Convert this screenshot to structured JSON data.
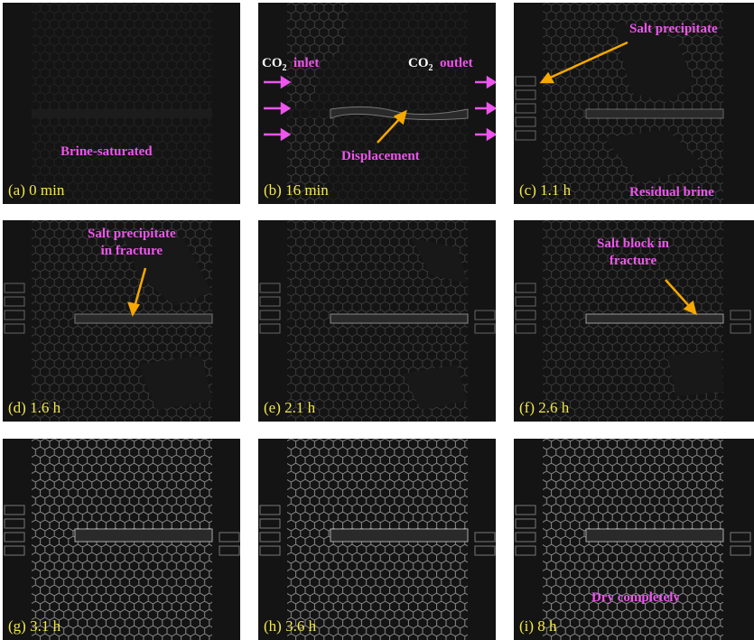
{
  "panels": [
    {
      "id": "a",
      "time": "(a) 0 min",
      "annotations": [
        "Brine-saturated"
      ]
    },
    {
      "id": "b",
      "time": "(b) 16 min",
      "annotations": [
        "inlet",
        "outlet",
        "Displacement"
      ],
      "gas": "CO",
      "gas_sub": "2"
    },
    {
      "id": "c",
      "time": "(c) 1.1 h",
      "annotations": [
        "Salt precipitate",
        "Residual brine"
      ]
    },
    {
      "id": "d",
      "time": "(d) 1.6 h",
      "annotations": [
        "Salt precipitate",
        "in fracture"
      ]
    },
    {
      "id": "e",
      "time": "(e) 2.1 h",
      "annotations": []
    },
    {
      "id": "f",
      "time": "(f) 2.6 h",
      "annotations": [
        "Salt block in",
        "fracture"
      ]
    },
    {
      "id": "g",
      "time": "(g) 3.1 h",
      "annotations": []
    },
    {
      "id": "h",
      "time": "(h) 3.6 h",
      "annotations": []
    },
    {
      "id": "i",
      "time": "(i) 8 h",
      "annotations": [
        "Dry completely"
      ]
    }
  ],
  "colors": {
    "label": "#f2e84b",
    "annotation": "#ee55ee",
    "arrow": "#f5a800",
    "background": "#141414"
  }
}
